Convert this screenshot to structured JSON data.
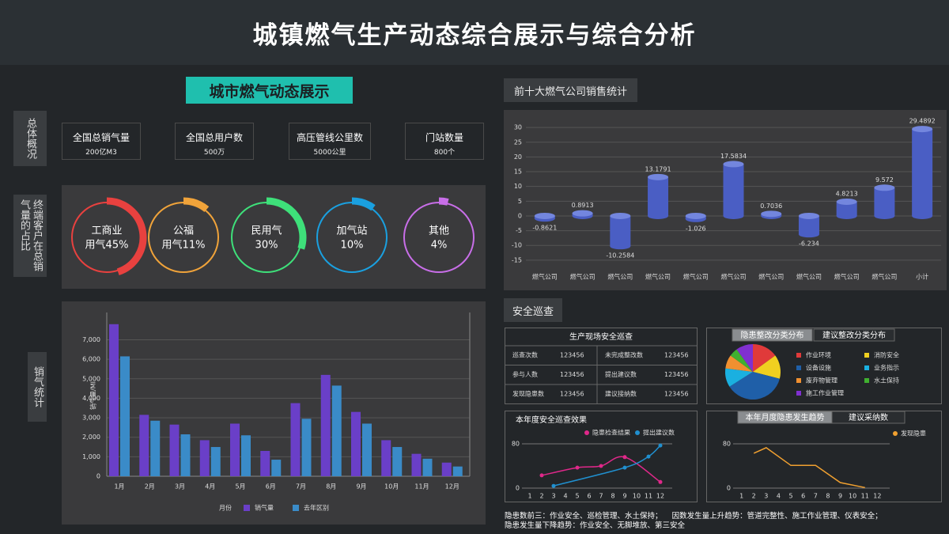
{
  "header": {
    "title": "城镇燃气生产动态综合展示与综合分析"
  },
  "left": {
    "title": "城市燃气动态展示",
    "overview_label": "总体概况",
    "share_label": "终端客户在总销气量的占比",
    "sales_label": "销气统计"
  },
  "overview": [
    {
      "label": "全国总销气量",
      "value": "200亿M3"
    },
    {
      "label": "全国总用户数",
      "value": "500万"
    },
    {
      "label": "高压管线公里数",
      "value": "5000公里"
    },
    {
      "label": "门站数量",
      "value": "800个"
    }
  ],
  "right": {
    "safety_title": "安全巡查"
  },
  "table": {
    "title": "生产现场安全巡查",
    "rows": [
      [
        "巡查次数",
        "123456",
        "未完成整改数",
        "123456"
      ],
      [
        "参与人数",
        "123456",
        "提出建议数",
        "123456"
      ],
      [
        "发现隐患数",
        "123456",
        "建议接纳数",
        "123456"
      ]
    ]
  },
  "notes": [
    "隐患数前三：作业安全、巡检管理、水土保持；",
    "因数发生量上升趋势：管道完整性、施工作业管理、仪表安全；",
    "隐患发生量下降趋势：作业安全、无脚堆放、第三安全"
  ],
  "chart_data": [
    {
      "type": "ring",
      "categories": [
        "工商业",
        "公福",
        "民用气",
        "加气站",
        "其他"
      ],
      "values": [
        45,
        11,
        30,
        10,
        4
      ],
      "value_labels": [
        "用气45%",
        "用气11%",
        "30%",
        "10%",
        "4%"
      ],
      "colors": [
        "#e8413f",
        "#f0a33a",
        "#3ee07a",
        "#1aa0e0",
        "#c86ee8"
      ]
    },
    {
      "type": "bar",
      "y_label": "销气量/MI",
      "x_label": "月份",
      "categories": [
        "1月",
        "2月",
        "3月",
        "4月",
        "5月",
        "6月",
        "7月",
        "8月",
        "9月",
        "10月",
        "11月",
        "12月"
      ],
      "series": [
        {
          "name": "销气量",
          "color": "#6a3fc8",
          "values": [
            7800,
            3150,
            2650,
            1850,
            2700,
            1300,
            3750,
            5200,
            3300,
            1850,
            1150,
            700
          ]
        },
        {
          "name": "去年区别",
          "color": "#3a8bc8",
          "values": [
            6150,
            2850,
            2150,
            1500,
            2100,
            850,
            2950,
            4650,
            2700,
            1500,
            900,
            500
          ]
        }
      ],
      "ylim": [
        0,
        8400
      ],
      "yticks": [
        0,
        {
          "value": 1000,
          "label": "1,000"
        },
        {
          "value": 2000,
          "label": "2,000"
        },
        {
          "value": 3000,
          "label": "3,000"
        },
        {
          "value": 4000,
          "label": "4,000"
        },
        {
          "value": 5000,
          "label": "5,000"
        },
        {
          "value": 6000,
          "label": "6,000"
        },
        {
          "value": 7000,
          "label": "7,000"
        }
      ],
      "grid": true
    },
    {
      "type": "cylinder",
      "title": "前十大燃气公司销售统计",
      "categories": [
        "燃气公司",
        "燃气公司",
        "燃气公司",
        "燃气公司",
        "燃气公司",
        "燃气公司",
        "燃气公司",
        "燃气公司",
        "燃气公司",
        "燃气公司",
        "小计"
      ],
      "values": [
        -0.8621,
        0.8913,
        -10.2584,
        13.1791,
        -1.026,
        17.5834,
        0.7036,
        -6.234,
        4.8213,
        9.572,
        29.4892
      ],
      "color": "#4a5ec4",
      "cap_color": "#7386de",
      "ylim": [
        -18,
        33
      ],
      "yticks": [
        -15,
        -10,
        -5,
        0,
        5,
        10,
        15,
        20,
        25,
        30
      ],
      "grid": true
    },
    {
      "type": "pie",
      "tabs": [
        "隐患整改分类分布",
        "建议整改分类分布"
      ],
      "categories": [
        "作业环境",
        "消防安全",
        "设备设施",
        "业务指示",
        "废弃物管理",
        "水土保持",
        "施工作业管理"
      ],
      "values": [
        15,
        14,
        37,
        11,
        8,
        5,
        10
      ],
      "colors": [
        "#e03a3a",
        "#f0d020",
        "#1f5fa8",
        "#1ab0e0",
        "#f09030",
        "#40b030",
        "#8030d0"
      ]
    },
    {
      "type": "line",
      "title": "本年度安全巡查效果",
      "smooth": true,
      "markers": true,
      "series": [
        {
          "name": "隐患检查结果",
          "color": "#e0288a",
          "x": [
            2,
            5,
            7,
            9,
            12
          ],
          "values": [
            23,
            37,
            40,
            56,
            11
          ]
        },
        {
          "name": "提出建议数",
          "color": "#2090d0",
          "x": [
            3,
            9,
            11,
            12
          ],
          "values": [
            4,
            37,
            57,
            77
          ]
        }
      ],
      "xlim": [
        0,
        13
      ],
      "xticks": [
        1,
        2,
        3,
        4,
        5,
        6,
        7,
        8,
        9,
        10,
        11,
        12
      ],
      "ylim": [
        0,
        90
      ],
      "yticks": [
        0,
        80
      ]
    },
    {
      "type": "line",
      "tabs": [
        "本年月度隐患发生趋势",
        "建议采纳数"
      ],
      "smooth": false,
      "markers": false,
      "series": [
        {
          "name": "发现隐患",
          "color": "#f0a030",
          "x": [
            2,
            3,
            5,
            7,
            9,
            11
          ],
          "values": [
            63,
            73,
            41,
            41,
            10,
            1
          ]
        }
      ],
      "xlim": [
        0,
        13
      ],
      "xticks": [
        1,
        2,
        3,
        4,
        5,
        6,
        7,
        8,
        9,
        10,
        11,
        12
      ],
      "ylim": [
        0,
        90
      ],
      "yticks": [
        0,
        80
      ]
    }
  ]
}
